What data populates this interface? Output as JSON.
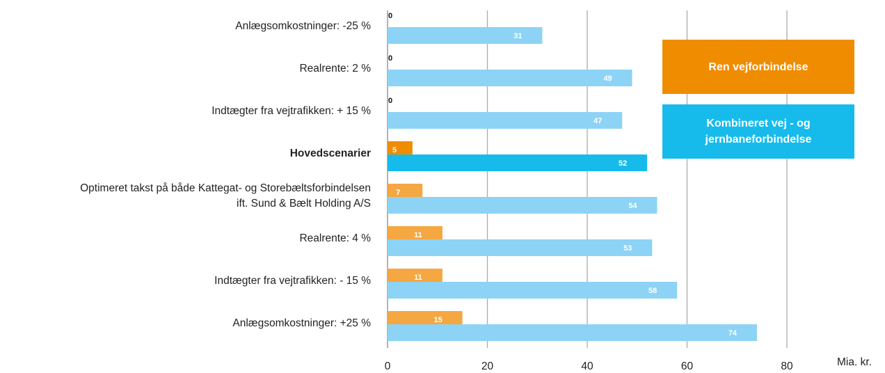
{
  "chart_data": {
    "type": "bar",
    "orientation": "horizontal",
    "categories": [
      "Anlægsomkostninger: -25 %",
      "Realrente: 2 %",
      "Indtægter fra vejtrafikken: + 15 %",
      "Hovedscenarier",
      "Optimeret takst på både Kattegat- og Storebæltsforbindelsen\nift. Sund & Bælt Holding A/S",
      "Realrente: 4 %",
      "Indtægter fra vejtrafikken: - 15 %",
      "Anlægsomkostninger: +25 %"
    ],
    "highlight_category": 3,
    "series": [
      {
        "name": "Ren vejforbindelse",
        "color": "#f08c00",
        "colors": [
          "#f5a742",
          "#f5a742",
          "#f5a742",
          "#f08c00",
          "#f5a742",
          "#f5a742",
          "#f5a742",
          "#f5a742"
        ],
        "values": [
          0,
          0,
          0,
          5,
          7,
          11,
          11,
          15
        ]
      },
      {
        "name": "Kombineret vej - og jernbaneforbindelse",
        "color": "#16bbec",
        "colors": [
          "#8dd3f5",
          "#8dd3f5",
          "#8dd3f5",
          "#16bbec",
          "#8dd3f5",
          "#8dd3f5",
          "#8dd3f5",
          "#8dd3f5"
        ],
        "values": [
          31,
          49,
          47,
          52,
          54,
          53,
          58,
          74
        ]
      }
    ],
    "x_unit_label": "Mia. kr.",
    "xlim": [
      0,
      80
    ],
    "xticks": [
      0,
      20,
      40,
      60,
      80
    ],
    "grid": true
  }
}
